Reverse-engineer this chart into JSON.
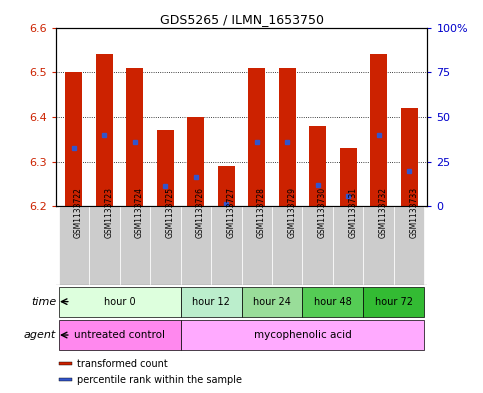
{
  "title": "GDS5265 / ILMN_1653750",
  "samples": [
    "GSM1133722",
    "GSM1133723",
    "GSM1133724",
    "GSM1133725",
    "GSM1133726",
    "GSM1133727",
    "GSM1133728",
    "GSM1133729",
    "GSM1133730",
    "GSM1133731",
    "GSM1133732",
    "GSM1133733"
  ],
  "bar_bottom": 6.2,
  "bar_tops": [
    6.5,
    6.54,
    6.51,
    6.37,
    6.4,
    6.29,
    6.51,
    6.51,
    6.38,
    6.33,
    6.54,
    6.42
  ],
  "blue_vals": [
    6.33,
    6.36,
    6.345,
    6.245,
    6.265,
    6.205,
    6.345,
    6.345,
    6.248,
    6.222,
    6.36,
    6.278
  ],
  "ylim": [
    6.2,
    6.6
  ],
  "yticks_left": [
    6.2,
    6.3,
    6.4,
    6.5,
    6.6
  ],
  "yticks_right": [
    0,
    25,
    50,
    75,
    100
  ],
  "bar_color": "#cc2200",
  "blue_color": "#3355cc",
  "time_groups": [
    {
      "label": "hour 0",
      "start": 0,
      "end": 4,
      "color": "#ddffdd"
    },
    {
      "label": "hour 12",
      "start": 4,
      "end": 6,
      "color": "#bbeecc"
    },
    {
      "label": "hour 24",
      "start": 6,
      "end": 8,
      "color": "#99dd99"
    },
    {
      "label": "hour 48",
      "start": 8,
      "end": 10,
      "color": "#55cc55"
    },
    {
      "label": "hour 72",
      "start": 10,
      "end": 12,
      "color": "#33bb33"
    }
  ],
  "agent_groups": [
    {
      "label": "untreated control",
      "start": 0,
      "end": 4,
      "color": "#ff88ee"
    },
    {
      "label": "mycophenolic acid",
      "start": 4,
      "end": 12,
      "color": "#ffaaff"
    }
  ],
  "legend_items": [
    {
      "label": "transformed count",
      "color": "#cc2200"
    },
    {
      "label": "percentile rank within the sample",
      "color": "#3355cc"
    }
  ],
  "left_color": "#cc2200",
  "right_color": "#0000cc",
  "n_samples": 12
}
